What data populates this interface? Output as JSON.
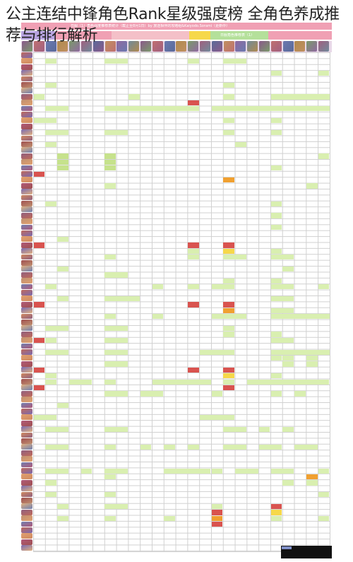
{
  "page": {
    "title": "公主连结中锋角色Rank星级强度榜 全角色养成推荐与排行解析"
  },
  "sheet_header": {
    "row1_text": "日服（1）角色强度推荐表统计（截止至8月1日）by 旅途相伴的攻略组&Kaiyodo.Sorami（更新中）",
    "row2_text": "日服角色推荐表（1）"
  },
  "colors": {
    "grid_line": "#d0d0d0",
    "light_green": "#d9efb0",
    "green": "#c6e28c",
    "red": "#d9534f",
    "orange": "#f0a030",
    "yellow": "#f6d84a",
    "pink_header": "#f0a0b4",
    "purple_header": "#b8a4e0",
    "blue_header": "#9ec3ec",
    "green_header": "#b4e09a",
    "thumbs_bg": "#e8d8e8"
  }
}
